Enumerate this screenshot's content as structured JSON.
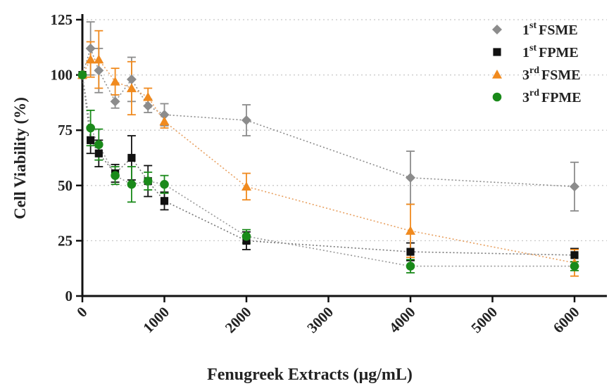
{
  "chart_data": {
    "type": "scatter",
    "xlabel": "Fenugreek Extracts (μg/mL)",
    "ylabel": "Cell Viability (%)",
    "xlim": [
      0,
      6000
    ],
    "ylim": [
      0,
      125
    ],
    "x_ticks": [
      0,
      1000,
      2000,
      3000,
      4000,
      5000,
      6000
    ],
    "y_ticks": [
      0,
      25,
      50,
      75,
      100,
      125
    ],
    "grid": "horizontal-dotted",
    "legend_position": "top-right",
    "connector_lines": "dotted",
    "series": [
      {
        "ord": "1",
        "sup": "st",
        "rest": "FSME",
        "marker": "diamond",
        "color": "#8c8c8c",
        "line_color": "#8c8c8c",
        "x": [
          0,
          100,
          200,
          400,
          600,
          800,
          1000,
          2000,
          4000,
          6000
        ],
        "y": [
          100,
          112,
          102,
          88,
          98,
          86,
          82,
          79.5,
          53.5,
          49.5
        ],
        "err": [
          0,
          12,
          10,
          3,
          10,
          3,
          5,
          7,
          12,
          11
        ]
      },
      {
        "ord": "1",
        "sup": "st",
        "rest": "FPME",
        "marker": "square",
        "color": "#111111",
        "line_color": "#777777",
        "x": [
          0,
          100,
          200,
          400,
          600,
          800,
          1000,
          2000,
          4000,
          6000
        ],
        "y": [
          100,
          70.5,
          64.5,
          55.5,
          62.5,
          52,
          43,
          25,
          20,
          18.5
        ],
        "err": [
          0,
          6,
          6,
          4,
          10,
          7,
          4,
          4,
          4,
          3
        ]
      },
      {
        "ord": "3",
        "sup": "rd",
        "rest": "FSME",
        "marker": "triangle",
        "color": "#f08a1e",
        "line_color": "#e8a060",
        "x": [
          0,
          100,
          200,
          400,
          600,
          800,
          1000,
          2000,
          4000,
          6000
        ],
        "y": [
          100,
          107,
          107,
          97,
          94,
          90,
          79,
          49.5,
          29.5,
          15
        ],
        "err": [
          0,
          8,
          13,
          6,
          12,
          4,
          3,
          6,
          12,
          6
        ]
      },
      {
        "ord": "3",
        "sup": "rd",
        "rest": "FPME",
        "marker": "circle",
        "color": "#1a8a1a",
        "line_color": "#999999",
        "x": [
          0,
          100,
          200,
          400,
          600,
          800,
          1000,
          2000,
          4000,
          6000
        ],
        "y": [
          100,
          76,
          68.5,
          54.5,
          50.5,
          52,
          50.5,
          27,
          13.5,
          13.5
        ],
        "err": [
          0,
          8,
          7,
          4,
          8,
          4,
          4,
          3,
          3,
          2
        ]
      }
    ]
  }
}
